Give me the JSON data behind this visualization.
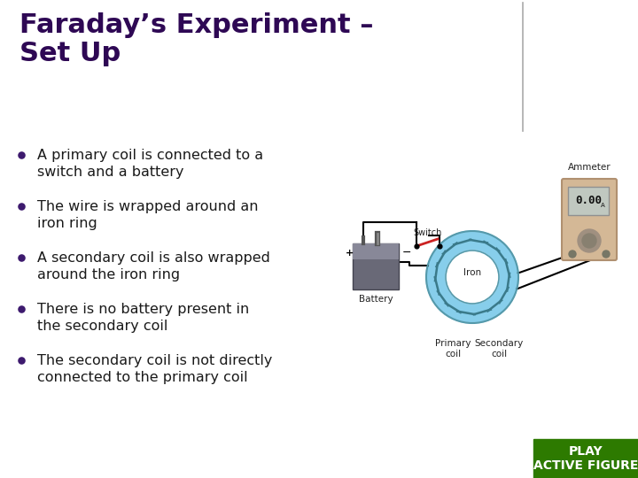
{
  "title": "Faraday’s Experiment –\nSet Up",
  "title_color": "#2E0854",
  "title_fontsize": 22,
  "title_bold": true,
  "background_color": "#FFFFFF",
  "divider_line_color": "#AAAAAA",
  "bullet_color": "#1a1a1a",
  "bullet_dot_color": "#3D1A6E",
  "bullet_fontsize": 11.5,
  "bullets": [
    "A primary coil is connected to a\nswitch and a battery",
    "The wire is wrapped around an\niron ring",
    "A secondary coil is also wrapped\naround the iron ring",
    "There is no battery present in\nthe secondary coil",
    "The secondary coil is not directly\nconnected to the primary coil"
  ],
  "play_button_color": "#2D7A00",
  "play_button_text": "PLAY\nACTIVE FIGURE",
  "play_button_text_color": "#FFFFFF",
  "play_button_fontsize": 10,
  "diagram": {
    "battery_color": "#7A7A8A",
    "battery_label": "Battery",
    "ring_color": "#87CEEB",
    "ring_outline_color": "#5599AA",
    "ammeter_body_color": "#D4B896",
    "ammeter_screen_color": "#C8C8D0",
    "switch_label": "Switch",
    "iron_label": "Iron",
    "primary_label": "Primary\ncoil",
    "secondary_label": "Secondary\ncoil",
    "ammeter_label": "Ammeter"
  }
}
